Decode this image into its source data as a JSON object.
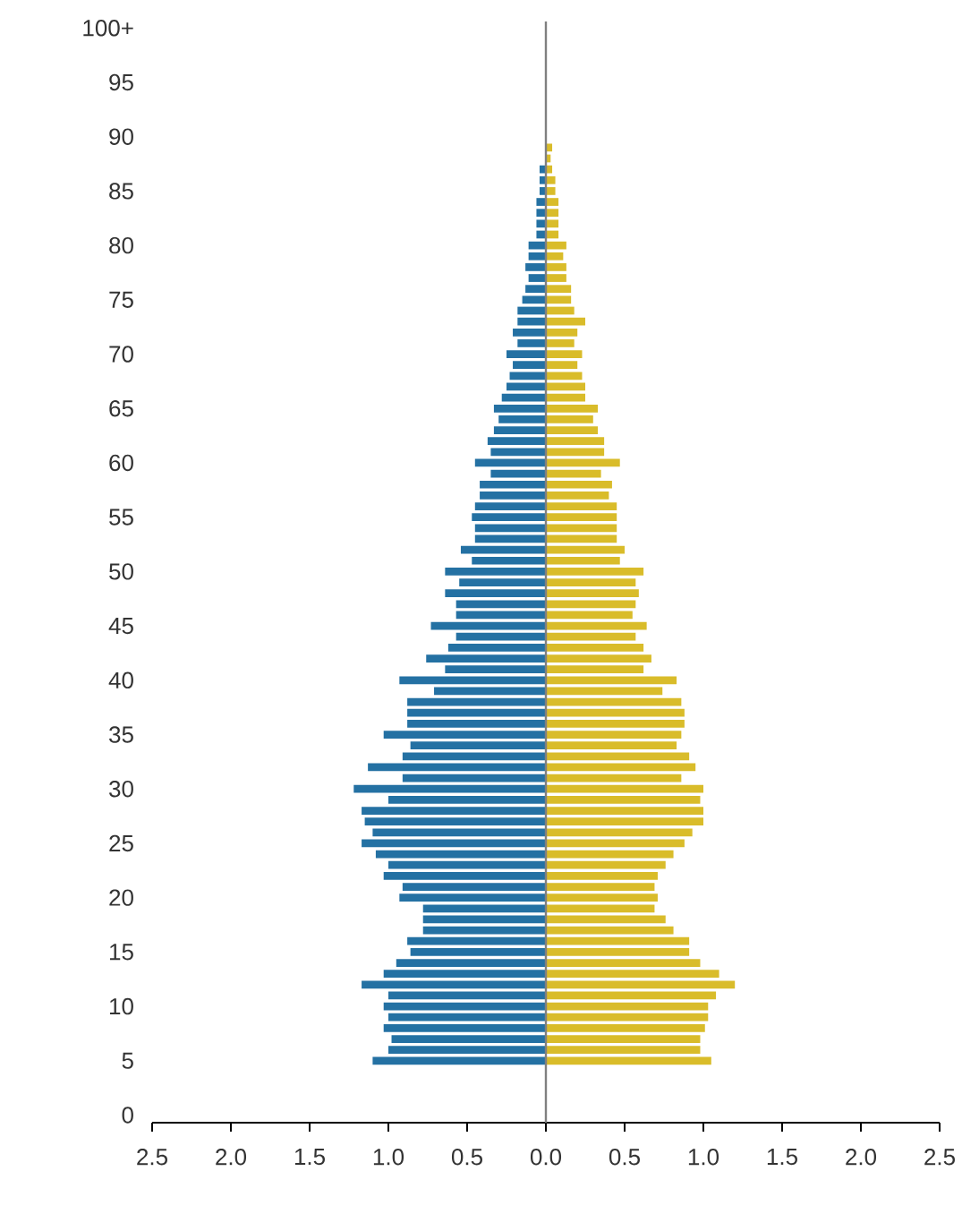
{
  "chart_data": {
    "type": "bar",
    "orientation": "horizontal",
    "stacked": true,
    "categories": [
      "100+",
      null,
      null,
      null,
      null,
      "95",
      null,
      null,
      null,
      null,
      "90",
      null,
      null,
      null,
      null,
      "85",
      null,
      null,
      null,
      null,
      "80",
      null,
      null,
      null,
      null,
      "75",
      null,
      null,
      null,
      null,
      "70",
      null,
      null,
      null,
      null,
      "65",
      null,
      null,
      null,
      null,
      "60",
      null,
      null,
      null,
      null,
      "55",
      null,
      null,
      null,
      null,
      "50",
      null,
      null,
      null,
      null,
      "45",
      null,
      null,
      null,
      null,
      "40",
      null,
      null,
      null,
      null,
      "35",
      null,
      null,
      null,
      null,
      "30",
      null,
      null,
      null,
      null,
      "25",
      null,
      null,
      null,
      null,
      "20",
      null,
      null,
      null,
      null,
      "15",
      null,
      null,
      null,
      null,
      "10",
      null,
      null,
      null,
      null,
      "5",
      null,
      null,
      null,
      null,
      "0"
    ],
    "series": [
      {
        "color": "#2471a3",
        "values": [
          null,
          null,
          null,
          null,
          null,
          null,
          null,
          null,
          null,
          null,
          null,
          null,
          null,
          -0.04,
          -0.04,
          -0.04,
          -0.06,
          -0.06,
          -0.06,
          -0.06,
          -0.11,
          -0.11,
          -0.13,
          -0.11,
          -0.13,
          -0.15,
          -0.18,
          -0.18,
          -0.21,
          -0.18,
          -0.25,
          -0.21,
          -0.23,
          -0.25,
          -0.28,
          -0.33,
          -0.3,
          -0.33,
          -0.37,
          -0.35,
          -0.45,
          -0.35,
          -0.42,
          -0.42,
          -0.45,
          -0.47,
          -0.45,
          -0.45,
          -0.54,
          -0.47,
          -0.64,
          -0.55,
          -0.64,
          -0.57,
          -0.57,
          -0.73,
          -0.57,
          -0.62,
          -0.76,
          -0.64,
          -0.93,
          -0.71,
          -0.88,
          -0.88,
          -0.88,
          -1.03,
          -0.86,
          -0.91,
          -1.13,
          -0.91,
          -1.22,
          -1.0,
          -1.17,
          -1.15,
          -1.1,
          -1.17,
          -1.08,
          -1.0,
          -1.03,
          -0.91,
          -0.93,
          -0.78,
          -0.78,
          -0.78,
          -0.88,
          -0.86,
          -0.95,
          -1.03,
          -1.17,
          -1.0,
          -1.03,
          -1.0,
          -1.03,
          -0.98,
          -1.0,
          -1.1,
          null,
          null,
          null,
          null,
          null
        ]
      },
      {
        "color": "#d9bc2a",
        "values": [
          null,
          null,
          null,
          null,
          null,
          null,
          null,
          null,
          null,
          null,
          null,
          0.04,
          0.03,
          0.04,
          0.06,
          0.06,
          0.08,
          0.08,
          0.08,
          0.08,
          0.13,
          0.11,
          0.13,
          0.13,
          0.16,
          0.16,
          0.18,
          0.25,
          0.2,
          0.18,
          0.23,
          0.2,
          0.23,
          0.25,
          0.25,
          0.33,
          0.3,
          0.33,
          0.37,
          0.37,
          0.47,
          0.35,
          0.42,
          0.4,
          0.45,
          0.45,
          0.45,
          0.45,
          0.5,
          0.47,
          0.62,
          0.57,
          0.59,
          0.57,
          0.55,
          0.64,
          0.57,
          0.62,
          0.67,
          0.62,
          0.83,
          0.74,
          0.86,
          0.88,
          0.88,
          0.86,
          0.83,
          0.91,
          0.95,
          0.86,
          1.0,
          0.98,
          1.0,
          1.0,
          0.93,
          0.88,
          0.81,
          0.76,
          0.71,
          0.69,
          0.71,
          0.69,
          0.76,
          0.81,
          0.91,
          0.91,
          0.98,
          1.1,
          1.2,
          1.08,
          1.03,
          1.03,
          1.01,
          0.98,
          0.98,
          1.05,
          null,
          null,
          null,
          null,
          null
        ]
      }
    ],
    "xlim": [
      -2.5,
      2.5
    ],
    "xticks": [
      {
        "value": -2.5,
        "label": "2.5"
      },
      {
        "value": -2,
        "label": "2.0"
      },
      {
        "value": -1.5,
        "label": "1.5"
      },
      {
        "value": -1,
        "label": "1.0"
      },
      {
        "value": -0.5,
        "label": "0.5"
      },
      {
        "value": 0,
        "label": "0.0"
      },
      {
        "value": 0.5,
        "label": "0.5"
      },
      {
        "value": 1,
        "label": "1.0"
      },
      {
        "value": 1.5,
        "label": "1.5"
      },
      {
        "value": 2,
        "label": "2.0"
      },
      {
        "value": 2.5,
        "label": "2.5"
      }
    ]
  }
}
